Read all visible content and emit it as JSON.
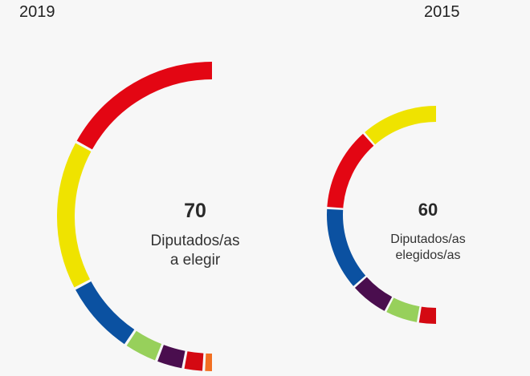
{
  "chart_data": [
    {
      "type": "pie",
      "title": "2019",
      "center_value": "70",
      "center_label_line1": "Diputados/as",
      "center_label_line2": "a elegir",
      "slices": [
        {
          "value": 24,
          "color": "#e30613"
        },
        {
          "value": 22,
          "color": "#efe300"
        },
        {
          "value": 11,
          "color": "#0b51a1"
        },
        {
          "value": 5,
          "color": "#97d05b"
        },
        {
          "value": 4,
          "color": "#4a0e4e"
        },
        {
          "value": 3,
          "color": "#d40912"
        },
        {
          "value": 1,
          "color": "#f26f22"
        }
      ]
    },
    {
      "type": "pie",
      "title": "2015",
      "center_value": "60",
      "center_label_line1": "Diputados/as",
      "center_label_line2": "elegidos/as",
      "slices": [
        {
          "value": 14,
          "color": "#efe300"
        },
        {
          "value": 15,
          "color": "#e30613"
        },
        {
          "value": 15,
          "color": "#0b51a1"
        },
        {
          "value": 7,
          "color": "#4a0e4e"
        },
        {
          "value": 6,
          "color": "#97d05b"
        },
        {
          "value": 3,
          "color": "#d40912"
        }
      ]
    }
  ]
}
